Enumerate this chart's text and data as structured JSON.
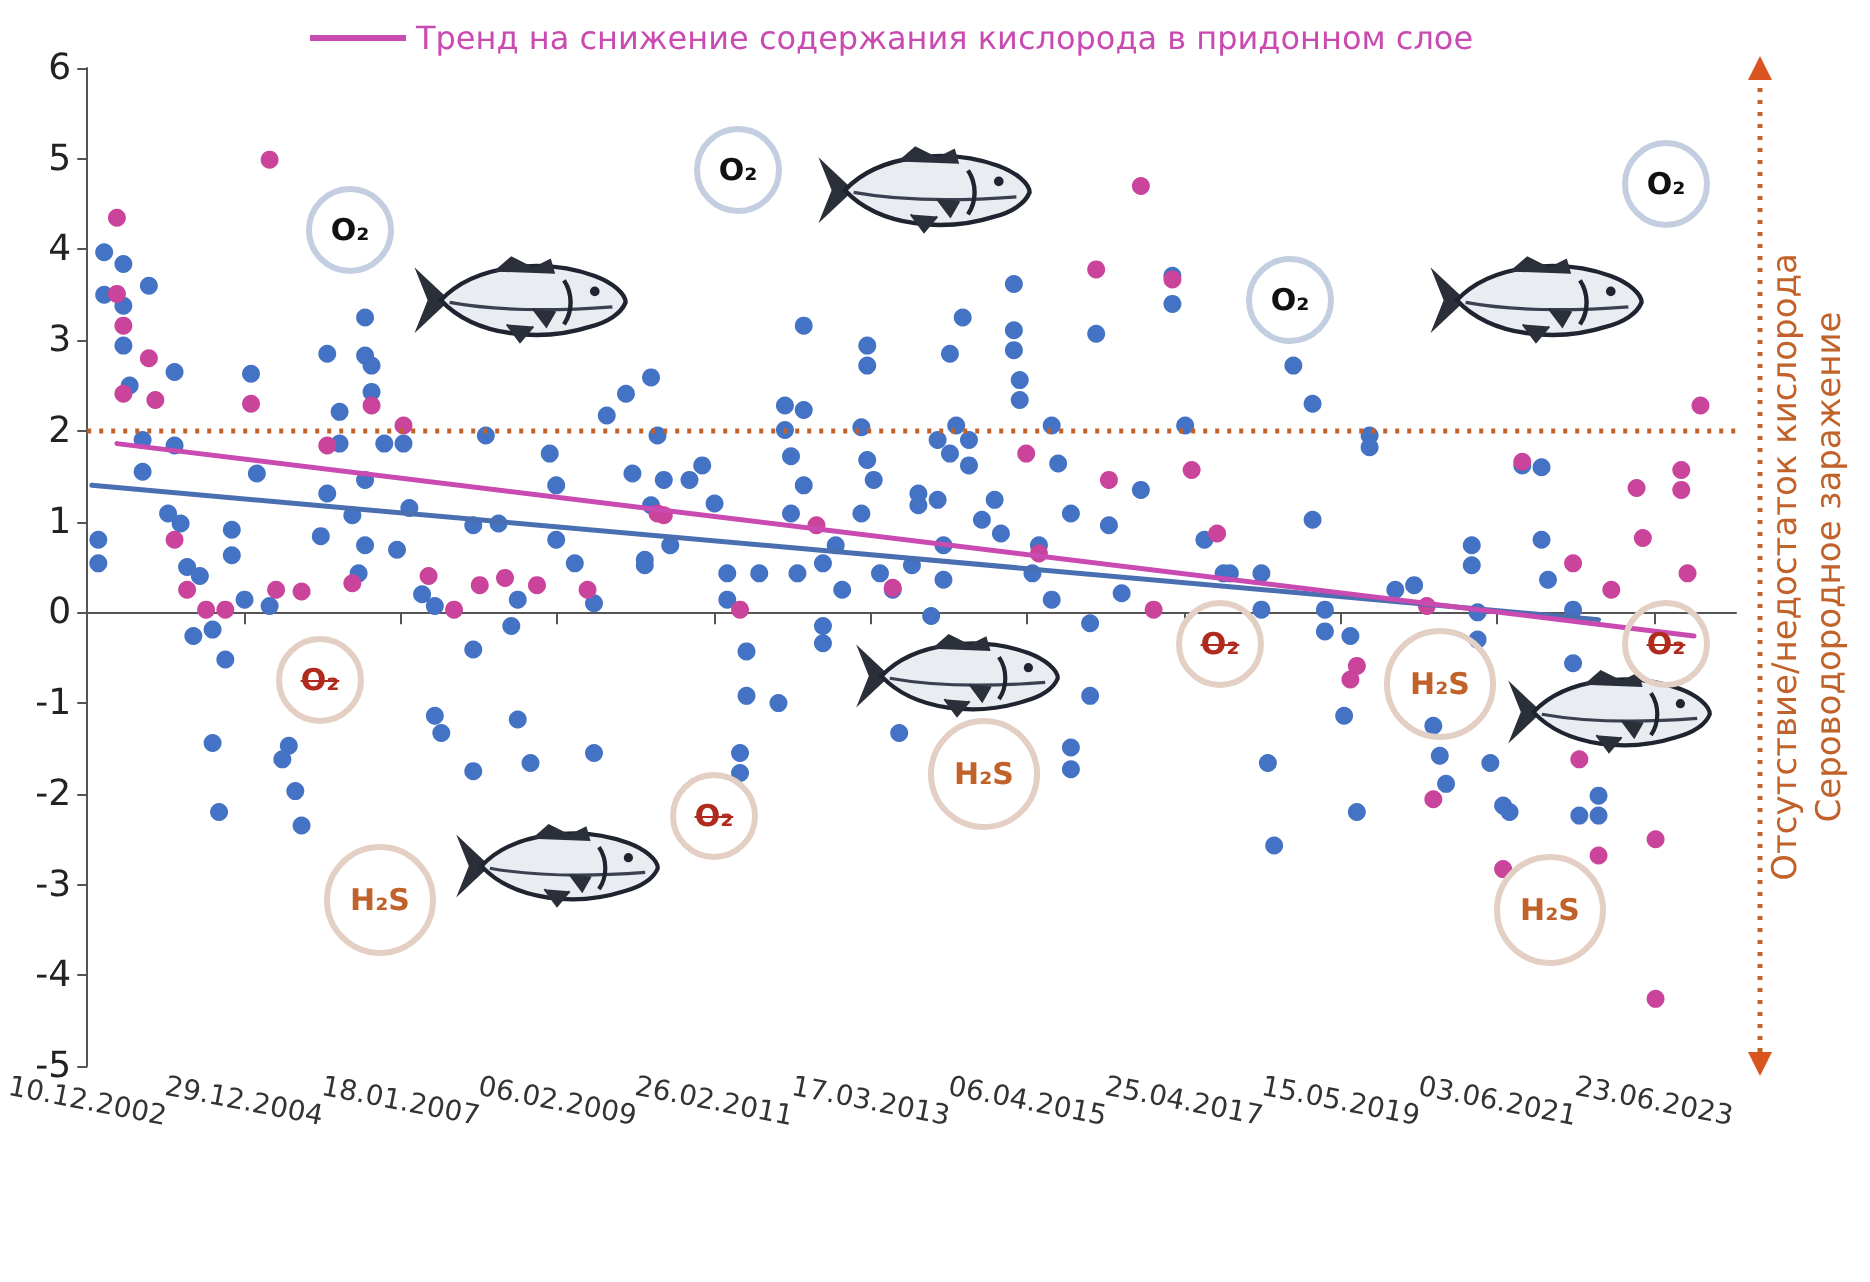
{
  "chart_data": {
    "type": "scatter",
    "grid": false,
    "legend": "top",
    "xlim": [
      "2002-12-10",
      "2024-07-20"
    ],
    "xticks": [
      {
        "value": "2002-12-10",
        "label": "10.12.2002"
      },
      {
        "value": "2004-12-29",
        "label": "29.12.2004"
      },
      {
        "value": "2007-01-18",
        "label": "18.01.2007"
      },
      {
        "value": "2009-02-06",
        "label": "06.02.2009"
      },
      {
        "value": "2011-02-26",
        "label": "26.02.2011"
      },
      {
        "value": "2013-03-17",
        "label": "17.03.2013"
      },
      {
        "value": "2015-04-06",
        "label": "06.04.2015"
      },
      {
        "value": "2017-04-25",
        "label": "25.04.2017"
      },
      {
        "value": "2019-05-15",
        "label": "15.05.2019"
      },
      {
        "value": "2021-06-03",
        "label": "03.06.2021"
      },
      {
        "value": "2023-06-23",
        "label": "23.06.2023"
      }
    ],
    "ylim": [
      -5,
      6
    ],
    "yticks": [
      -5,
      -4,
      -3,
      -2,
      -1,
      0,
      1,
      2,
      3,
      4,
      5,
      6
    ],
    "ref_lines": [
      {
        "axis": "y",
        "value": 2,
        "color": "#c0622a",
        "line_style": "dotted"
      }
    ],
    "annotations": [
      "Отсутствие/недостаток кислорода",
      "Сероводородное заражение",
      "O₂",
      "O₂",
      "O₂",
      "O₂",
      "O₂",
      "O₂",
      "O₂",
      "O₂",
      "H₂S",
      "H₂S",
      "H₂S",
      "H₂S"
    ],
    "series": [
      {
        "color": "#4472c4",
        "x": [
          "2003-02",
          "2003-02",
          "2003-03",
          "2003-03",
          "2003-06",
          "2003-06",
          "2003-06",
          "2003-07",
          "2003-10",
          "2004-02",
          "2003-09",
          "2003-09",
          "2004-02",
          "2004-01",
          "2004-03",
          "2004-04",
          "2004-06",
          "2004-05",
          "2004-08",
          "2004-10",
          "2004-08",
          "2004-09",
          "2004-11",
          "2004-11",
          "2005-01",
          "2005-02",
          "2005-03",
          "2005-05",
          "2005-08",
          "2005-07",
          "2005-09",
          "2005-10",
          "2006-02",
          "2006-04",
          "2006-04",
          "2006-02",
          "2006-01",
          "2006-08",
          "2006-08",
          "2006-09",
          "2006-09",
          "2006-11",
          "2006-08",
          "2006-06",
          "2006-08",
          "2006-07",
          "2007-01",
          "2007-03",
          "2007-02",
          "2007-05",
          "2007-07",
          "2007-07",
          "2007-08",
          "2008-01",
          "2008-01",
          "2008-03",
          "2008-01",
          "2008-05",
          "2008-08",
          "2008-07",
          "2008-08",
          "2008-10",
          "2009-01",
          "2009-02",
          "2009-02",
          "2009-05",
          "2009-08",
          "2009-08",
          "2009-10",
          "2010-01",
          "2010-02",
          "2010-04",
          "2010-05",
          "2010-06",
          "2010-05",
          "2010-04",
          "2010-07",
          "2010-08",
          "2010-11",
          "2011-01",
          "2011-03",
          "2011-05",
          "2011-05",
          "2011-08",
          "2011-08",
          "2012-01",
          "2011-07",
          "2011-07",
          "2011-10",
          "2012-04",
          "2012-02",
          "2012-05",
          "2012-02",
          "2012-03",
          "2012-03",
          "2012-05",
          "2012-05",
          "2012-08",
          "2012-08",
          "2012-08",
          "2012-10",
          "2012-11",
          "2013-02",
          "2013-02",
          "2013-03",
          "2013-04",
          "2013-03",
          "2013-03",
          "2013-05",
          "2013-07",
          "2013-10",
          "2013-08",
          "2013-11",
          "2013-11",
          "2014-02",
          "2014-02",
          "2014-03",
          "2014-03",
          "2014-01",
          "2014-04",
          "2014-06",
          "2014-05",
          "2014-04",
          "2014-07",
          "2014-07",
          "2014-09",
          "2014-11",
          "2014-12",
          "2015-02",
          "2015-02",
          "2015-02",
          "2015-03",
          "2015-03",
          "2015-05",
          "2015-06",
          "2015-08",
          "2015-08",
          "2015-09",
          "2015-11",
          "2015-11",
          "2015-11",
          "2016-02",
          "2016-02",
          "2016-03",
          "2016-05",
          "2016-07",
          "2016-10",
          "2017-05",
          "2017-08",
          "2017-03",
          "2017-03",
          "2017-11",
          "2018-10",
          "2019-01",
          "2019-10",
          "2019-10",
          "2019-01",
          "2017-12",
          "2018-05",
          "2018-05",
          "2019-03",
          "2019-03",
          "2019-07",
          "2019-06",
          "2018-06",
          "2018-07",
          "2019-08",
          "2020-02",
          "2020-05",
          "2021-02",
          "2021-02",
          "2021-03",
          "2021-03",
          "2020-08",
          "2020-09",
          "2020-10",
          "2021-05",
          "2021-07",
          "2021-08",
          "2021-10",
          "2022-01",
          "2022-01",
          "2022-02",
          "2022-06",
          "2022-06",
          "2022-07",
          "2022-10",
          "2022-10"
        ],
        "values": [
          0.8,
          0.54,
          3.97,
          3.5,
          3.84,
          3.38,
          2.94,
          2.5,
          3.6,
          2.65,
          1.9,
          1.55,
          1.84,
          1.09,
          0.98,
          0.5,
          0.4,
          -0.26,
          -0.19,
          -0.52,
          -1.44,
          -2.2,
          0.91,
          0.63,
          0.14,
          2.63,
          1.53,
          0.07,
          -1.47,
          -1.62,
          -1.97,
          -2.35,
          2.85,
          2.21,
          1.86,
          1.31,
          0.84,
          3.25,
          2.83,
          2.72,
          2.43,
          1.86,
          1.46,
          1.07,
          0.74,
          0.43,
          0.69,
          1.15,
          1.86,
          0.2,
          0.07,
          -1.14,
          -1.33,
          -1.75,
          -0.41,
          1.95,
          0.96,
          0.98,
          0.14,
          -0.15,
          -1.18,
          -1.66,
          1.75,
          1.4,
          0.8,
          0.54,
          0.1,
          -1.55,
          2.17,
          2.41,
          1.53,
          0.58,
          2.59,
          1.95,
          1.18,
          0.52,
          1.46,
          0.74,
          1.46,
          1.62,
          1.2,
          0.43,
          0.14,
          -0.43,
          -0.92,
          -1.0,
          -1.55,
          -1.77,
          0.43,
          0.43,
          2.28,
          2.23,
          2.01,
          1.72,
          1.09,
          1.4,
          3.16,
          0.54,
          -0.15,
          -0.34,
          0.74,
          0.25,
          1.09,
          2.04,
          1.68,
          1.46,
          2.94,
          2.72,
          0.43,
          0.25,
          0.52,
          -1.33,
          1.31,
          1.18,
          1.9,
          1.24,
          0.74,
          0.36,
          -0.04,
          2.85,
          3.25,
          2.06,
          1.75,
          1.9,
          1.62,
          1.02,
          1.24,
          0.87,
          3.62,
          3.11,
          2.89,
          2.56,
          2.34,
          0.43,
          0.74,
          0.14,
          2.06,
          1.64,
          1.09,
          -1.49,
          -1.73,
          -0.12,
          -0.92,
          3.07,
          0.96,
          0.21,
          1.35,
          2.06,
          0.8,
          3.71,
          3.4,
          0.43,
          2.72,
          2.3,
          1.95,
          1.82,
          1.02,
          0.43,
          0.43,
          0.03,
          0.03,
          -0.21,
          -0.26,
          -1.14,
          -1.66,
          -2.57,
          -2.2,
          0.25,
          0.3,
          0.74,
          0.52,
          0.0,
          -0.3,
          -1.25,
          -1.58,
          -1.89,
          -1.66,
          -2.13,
          -2.2,
          1.62,
          1.6,
          0.8,
          0.36,
          0.03,
          -0.56,
          -2.24,
          -2.02,
          -2.24
        ]
      },
      {
        "color": "#c9449a",
        "x": [
          "2003-05",
          "2003-05",
          "2003-06",
          "2003-06",
          "2003-10",
          "2003-11",
          "2004-02",
          "2004-04",
          "2004-07",
          "2004-10",
          "2005-02",
          "2005-05",
          "2005-06",
          "2005-10",
          "2006-02",
          "2006-06",
          "2006-09",
          "2007-02",
          "2007-06",
          "2007-10",
          "2008-02",
          "2008-06",
          "2008-11",
          "2009-07",
          "2010-06",
          "2010-07",
          "2011-07",
          "2012-07",
          "2013-07",
          "2015-04",
          "2015-06",
          "2016-03",
          "2016-05",
          "2016-10",
          "2016-12",
          "2017-03",
          "2017-06",
          "2017-10",
          "2024-02",
          "2021-10",
          "2023-04",
          "2023-11",
          "2023-11",
          "2023-05",
          "2023-12",
          "2022-12",
          "2022-06",
          "2020-07",
          "2019-08",
          "2019-07",
          "2020-08",
          "2022-07",
          "2021-07",
          "2022-10",
          "2023-07",
          "2023-07"
        ],
        "values": [
          4.35,
          3.51,
          3.16,
          2.41,
          2.8,
          2.34,
          0.8,
          0.25,
          0.03,
          0.03,
          2.3,
          4.99,
          0.25,
          0.23,
          1.84,
          0.32,
          2.28,
          2.06,
          0.4,
          0.03,
          0.3,
          0.38,
          0.3,
          0.25,
          1.09,
          1.07,
          0.03,
          0.96,
          0.27,
          1.75,
          0.65,
          3.78,
          1.46,
          4.7,
          0.03,
          3.67,
          1.57,
          0.87,
          2.28,
          1.66,
          1.37,
          1.57,
          1.35,
          0.82,
          0.43,
          0.25,
          0.54,
          0.07,
          -0.59,
          -0.74,
          -2.06,
          -1.62,
          -2.83,
          -2.68,
          -2.5,
          -4.26
        ]
      },
      {
        "type": "line",
        "color": "#4a6fb0",
        "x": [
          "2003-01",
          "2022-10"
        ],
        "values": [
          1.4,
          -0.08
        ]
      },
      {
        "type": "line",
        "name": "Тренд на снижение содержания кислорода в придонном слое",
        "color": "#c94ab0",
        "x": [
          "2003-05",
          "2024-01"
        ],
        "values": [
          1.86,
          -0.26
        ]
      }
    ]
  }
}
